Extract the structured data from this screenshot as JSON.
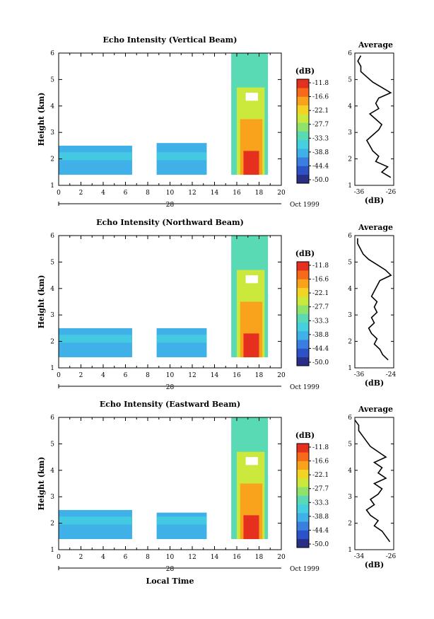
{
  "colors": {
    "palette": [
      "#2a2f86",
      "#2d52c8",
      "#3a7fe0",
      "#3fb1e8",
      "#46cfe0",
      "#5ad9b5",
      "#8fe36b",
      "#cbe83c",
      "#f3d324",
      "#f9a21c",
      "#f66a1a",
      "#e6301f"
    ],
    "line": "#000000"
  },
  "colorbar": {
    "label": "(dB)",
    "ticks": [
      "-11.8",
      "-16.6",
      "-22.1",
      "-27.7",
      "-33.3",
      "-38.8",
      "-44.4",
      "-50.0"
    ]
  },
  "date_label": "Oct 1999",
  "day_label": "28",
  "xlabel_bottom": "Local Time",
  "chart_data": [
    {
      "type": "heatmap",
      "title": "Echo Intensity (Vertical Beam)",
      "xlabel": "",
      "ylabel": "Height (km)",
      "xlim": [
        0,
        20
      ],
      "ylim": [
        1,
        6
      ],
      "xticks": [
        0,
        2,
        4,
        6,
        8,
        10,
        12,
        14,
        16,
        18,
        20
      ],
      "yticks": [
        1,
        2,
        3,
        4,
        5,
        6
      ],
      "regions": [
        {
          "t0": 0.0,
          "t1": 6.6,
          "z0": 1.4,
          "z1": 2.5,
          "level": 3
        },
        {
          "t0": 8.8,
          "t1": 13.3,
          "z0": 1.4,
          "z1": 2.6,
          "level": 3
        },
        {
          "t0": 15.5,
          "t1": 18.8,
          "z0": 1.4,
          "z1": 6.0,
          "level": 5
        },
        {
          "t0": 16.0,
          "t1": 18.5,
          "z0": 1.4,
          "z1": 4.7,
          "level": 7
        },
        {
          "t0": 16.3,
          "t1": 18.3,
          "z0": 1.4,
          "z1": 3.5,
          "level": 9
        },
        {
          "t0": 16.6,
          "t1": 18.0,
          "z0": 1.4,
          "z1": 2.3,
          "level": 11
        }
      ],
      "gap_top_km": 4.5,
      "average": {
        "title": "Average",
        "xlabel": "(dB)",
        "xticks": [
          "-36",
          "-26"
        ],
        "xlim": [
          -38,
          -25
        ],
        "profile_z": [
          1.3,
          1.5,
          1.7,
          1.9,
          2.1,
          2.3,
          2.5,
          2.7,
          2.9,
          3.1,
          3.3,
          3.5,
          3.7,
          3.9,
          4.1,
          4.3,
          4.5,
          4.7,
          4.9,
          5.1,
          5.3,
          5.5,
          5.7,
          5.9
        ],
        "profile_v": [
          -26,
          -29,
          -27,
          -31,
          -30,
          -32,
          -33,
          -34,
          -32,
          -30,
          -29,
          -31,
          -33,
          -30,
          -31,
          -30,
          -26,
          -29,
          -32,
          -34,
          -36,
          -36,
          -37,
          -36
        ]
      }
    },
    {
      "type": "heatmap",
      "title": "Echo Intensity (Northward Beam)",
      "xlabel": "",
      "ylabel": "Height (km)",
      "xlim": [
        0,
        20
      ],
      "ylim": [
        1,
        6
      ],
      "xticks": [
        0,
        2,
        4,
        6,
        8,
        10,
        12,
        14,
        16,
        18,
        20
      ],
      "yticks": [
        1,
        2,
        3,
        4,
        5,
        6
      ],
      "regions": [
        {
          "t0": 0.0,
          "t1": 6.6,
          "z0": 1.4,
          "z1": 2.5,
          "level": 3
        },
        {
          "t0": 8.8,
          "t1": 13.3,
          "z0": 1.4,
          "z1": 2.5,
          "level": 3
        },
        {
          "t0": 15.5,
          "t1": 18.8,
          "z0": 1.4,
          "z1": 6.0,
          "level": 5
        },
        {
          "t0": 16.0,
          "t1": 18.5,
          "z0": 1.4,
          "z1": 4.7,
          "level": 7
        },
        {
          "t0": 16.3,
          "t1": 18.3,
          "z0": 1.4,
          "z1": 3.5,
          "level": 9
        },
        {
          "t0": 16.6,
          "t1": 18.0,
          "z0": 1.4,
          "z1": 2.3,
          "level": 11
        }
      ],
      "gap_top_km": 4.5,
      "average": {
        "title": "Average",
        "xlabel": "(dB)",
        "xticks": [
          "-36",
          "-24"
        ],
        "xlim": [
          -37,
          -23
        ],
        "profile_z": [
          1.3,
          1.5,
          1.7,
          1.9,
          2.1,
          2.3,
          2.5,
          2.7,
          2.9,
          3.1,
          3.3,
          3.5,
          3.7,
          3.9,
          4.1,
          4.3,
          4.5,
          4.7,
          4.9,
          5.1,
          5.3,
          5.5,
          5.7,
          5.9
        ],
        "profile_v": [
          -25,
          -27,
          -28,
          -30,
          -29,
          -31,
          -32,
          -30,
          -31,
          -29,
          -30,
          -29,
          -31,
          -30,
          -29,
          -28,
          -24,
          -26,
          -29,
          -32,
          -34,
          -35,
          -36,
          -36
        ]
      }
    },
    {
      "type": "heatmap",
      "title": "Echo Intensity (Eastward Beam)",
      "xlabel": "Local Time",
      "ylabel": "Height (km)",
      "xlim": [
        0,
        20
      ],
      "ylim": [
        1,
        6
      ],
      "xticks": [
        0,
        2,
        4,
        6,
        8,
        10,
        12,
        14,
        16,
        18,
        20
      ],
      "yticks": [
        1,
        2,
        3,
        4,
        5,
        6
      ],
      "regions": [
        {
          "t0": 0.0,
          "t1": 6.6,
          "z0": 1.4,
          "z1": 2.5,
          "level": 3
        },
        {
          "t0": 8.8,
          "t1": 13.3,
          "z0": 1.4,
          "z1": 2.4,
          "level": 3
        },
        {
          "t0": 15.5,
          "t1": 18.8,
          "z0": 1.4,
          "z1": 6.0,
          "level": 5
        },
        {
          "t0": 16.0,
          "t1": 18.5,
          "z0": 1.4,
          "z1": 4.7,
          "level": 7
        },
        {
          "t0": 16.3,
          "t1": 18.3,
          "z0": 1.4,
          "z1": 3.5,
          "level": 9
        },
        {
          "t0": 16.6,
          "t1": 18.0,
          "z0": 1.4,
          "z1": 2.3,
          "level": 11
        }
      ],
      "gap_top_km": 4.5,
      "average": {
        "title": "Average",
        "xlabel": "(dB)",
        "xticks": [
          "-34",
          "-26"
        ],
        "xlim": [
          -35,
          -25
        ],
        "profile_z": [
          1.3,
          1.5,
          1.7,
          1.9,
          2.1,
          2.3,
          2.5,
          2.7,
          2.9,
          3.1,
          3.3,
          3.5,
          3.7,
          3.9,
          4.1,
          4.3,
          4.5,
          4.7,
          4.9,
          5.1,
          5.3,
          5.5,
          5.7,
          5.9
        ],
        "profile_v": [
          -26,
          -27,
          -28,
          -30,
          -29,
          -31,
          -32,
          -30,
          -31,
          -29,
          -28,
          -30,
          -27,
          -29,
          -28,
          -30,
          -27,
          -29,
          -31,
          -32,
          -33,
          -34,
          -34,
          -35
        ]
      }
    }
  ]
}
